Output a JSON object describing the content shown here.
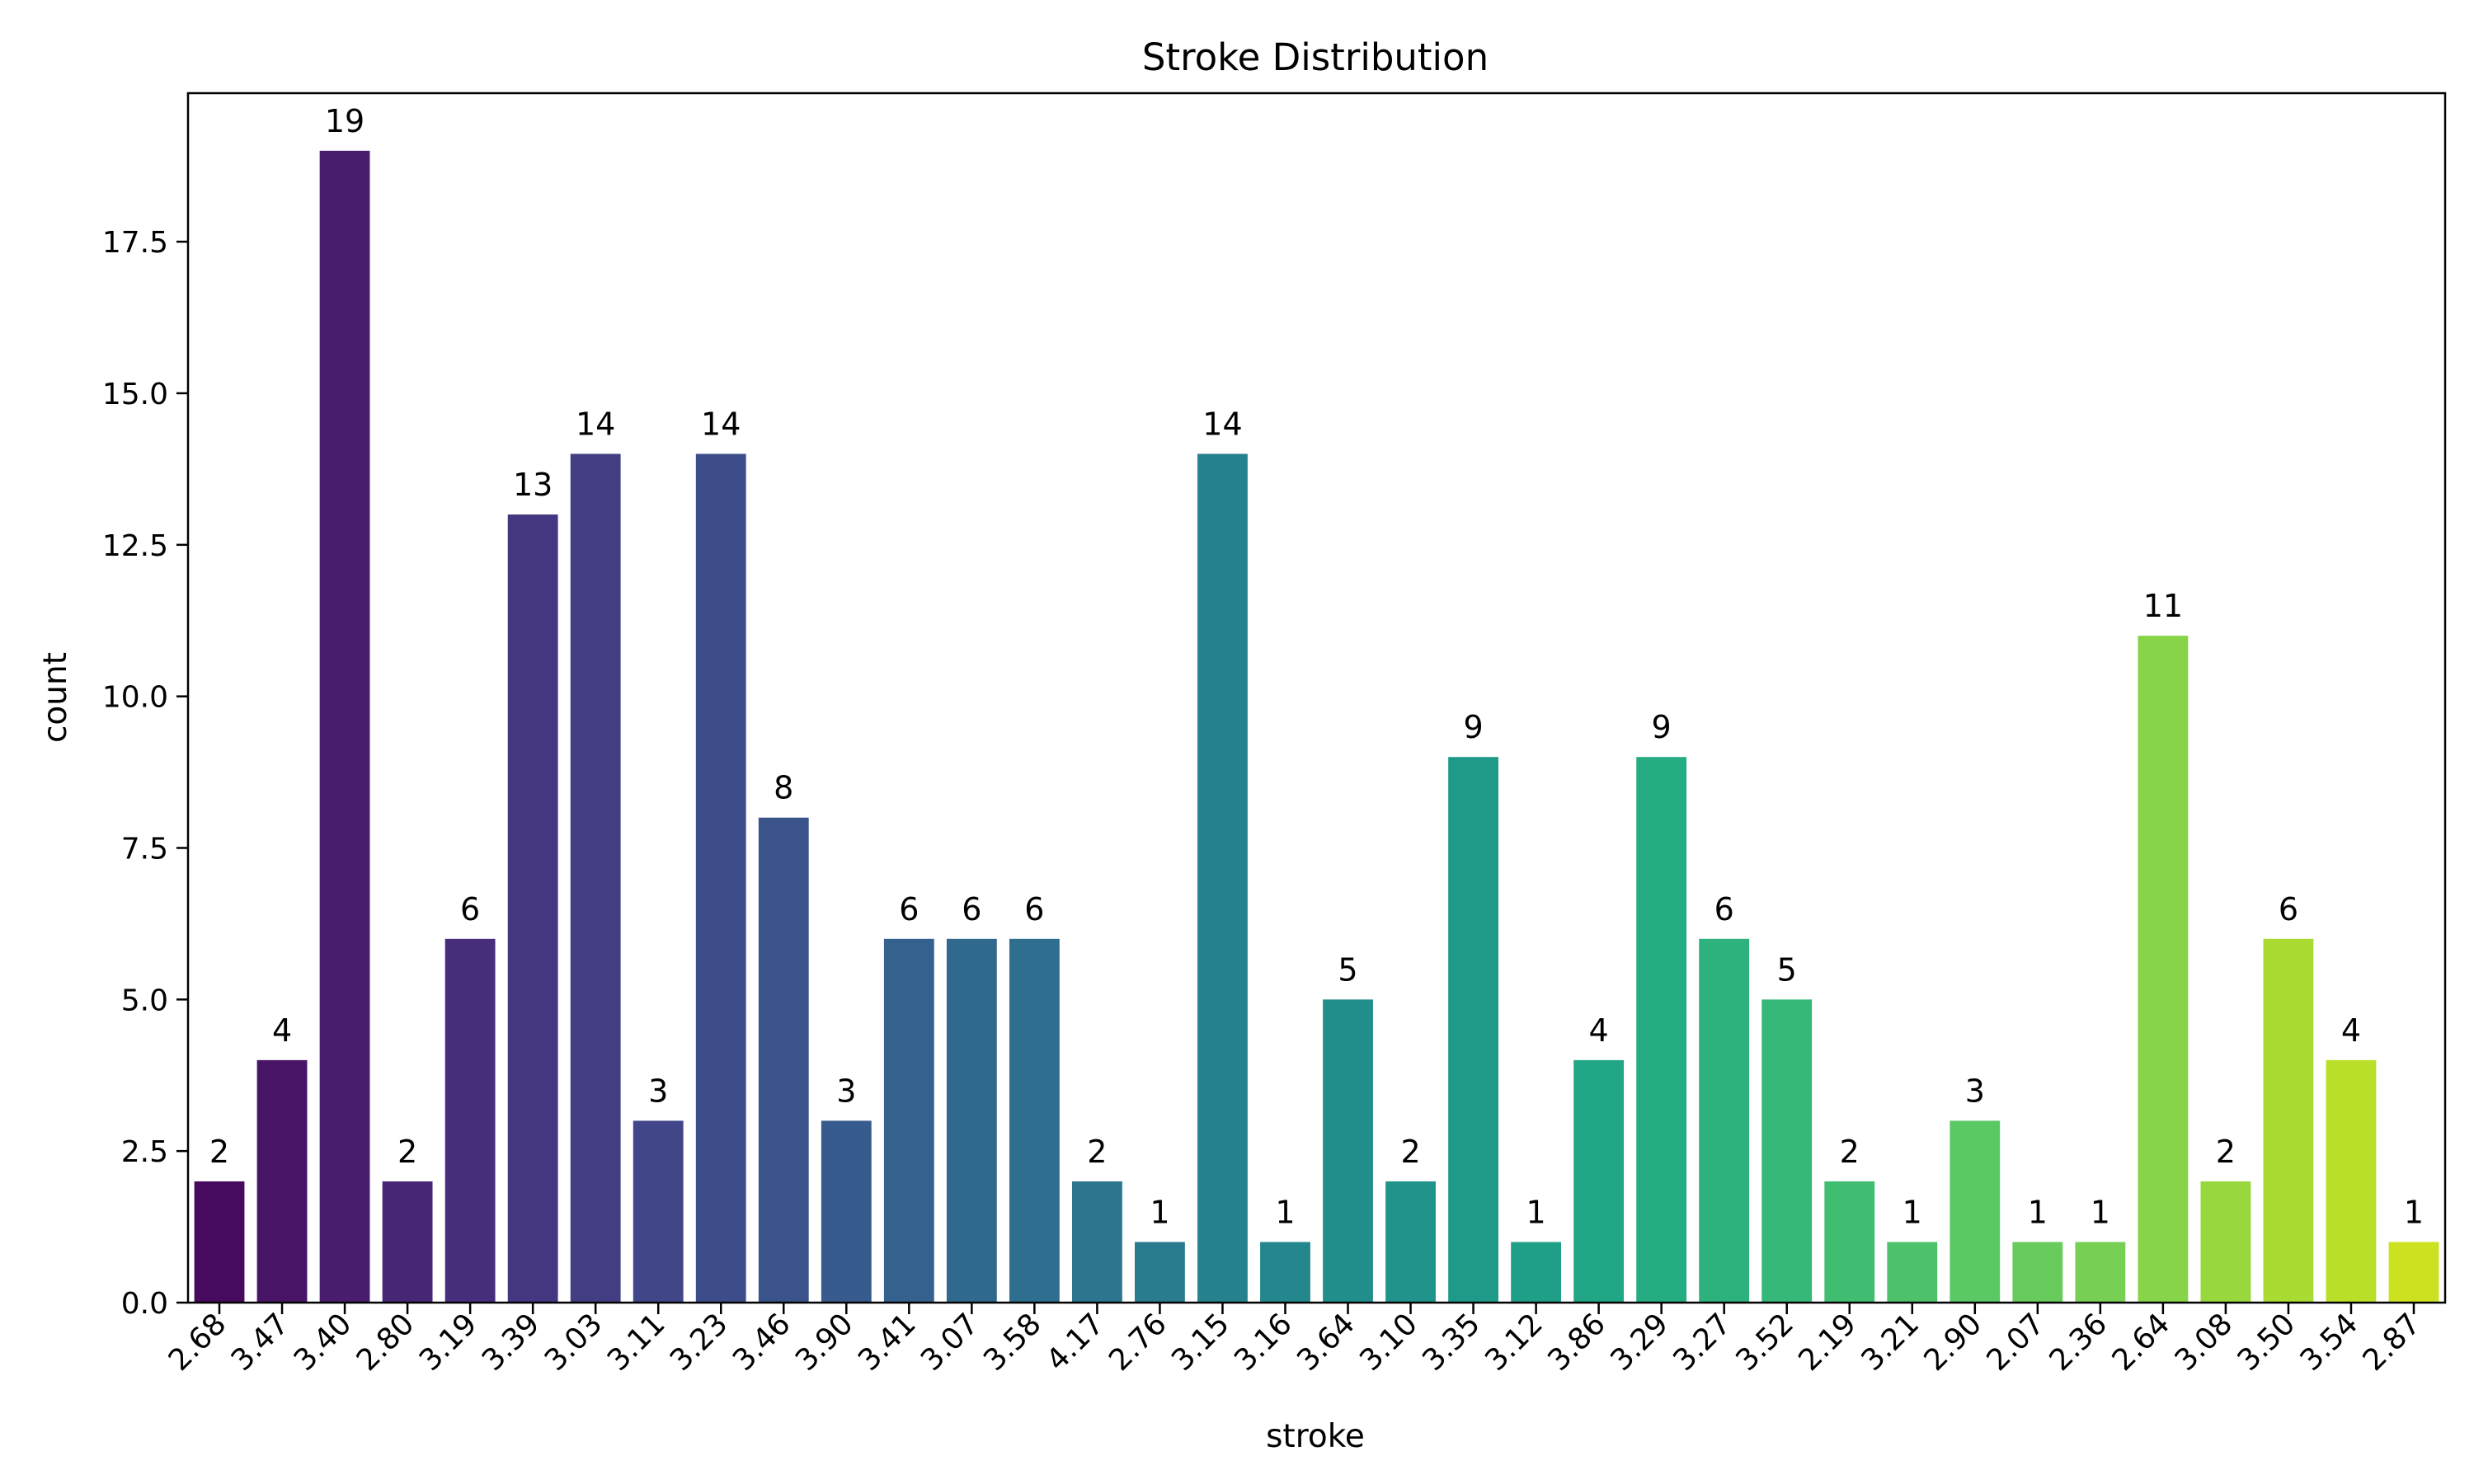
{
  "chart_data": {
    "type": "bar",
    "title": "Stroke Distribution",
    "xlabel": "stroke",
    "ylabel": "count",
    "ylim": [
      0,
      19.95
    ],
    "yticks": [
      "0.0",
      "2.5",
      "5.0",
      "7.5",
      "10.0",
      "12.5",
      "15.0",
      "17.5"
    ],
    "ytick_values": [
      0,
      2.5,
      5,
      7.5,
      10,
      12.5,
      15,
      17.5
    ],
    "categories": [
      "2.68",
      "3.47",
      "3.40",
      "2.80",
      "3.19",
      "3.39",
      "3.03",
      "3.11",
      "3.23",
      "3.46",
      "3.90",
      "3.41",
      "3.07",
      "3.58",
      "4.17",
      "2.76",
      "3.15",
      "3.16",
      "3.64",
      "3.10",
      "3.35",
      "3.12",
      "3.86",
      "3.29",
      "3.27",
      "3.52",
      "2.19",
      "3.21",
      "2.90",
      "2.07",
      "2.36",
      "2.64",
      "3.08",
      "3.50",
      "3.54",
      "2.87"
    ],
    "values": [
      2,
      4,
      19,
      2,
      6,
      13,
      14,
      3,
      14,
      8,
      3,
      6,
      6,
      6,
      2,
      1,
      14,
      1,
      5,
      2,
      9,
      1,
      4,
      9,
      6,
      5,
      2,
      1,
      3,
      1,
      1,
      11,
      2,
      6,
      4,
      1
    ],
    "data_labels": [
      "2",
      "4",
      "19",
      "2",
      "6",
      "13",
      "14",
      "3",
      "14",
      "8",
      "3",
      "6",
      "6",
      "6",
      "2",
      "1",
      "14",
      "1",
      "5",
      "2",
      "9",
      "1",
      "4",
      "9",
      "6",
      "5",
      "2",
      "1",
      "3",
      "1",
      "1",
      "11",
      "2",
      "6",
      "4",
      "1"
    ],
    "colors": [
      "#440154",
      "#471365",
      "#482475",
      "#463480",
      "#414487",
      "#3b528b",
      "#355f8d",
      "#2f6c8e",
      "#2a788e",
      "#25848e",
      "#21918c",
      "#1e9c89",
      "#22a884",
      "#2fb47c",
      "#44bf70",
      "#5ec962",
      "#7ad151",
      "#9bd93c",
      "#bddf26",
      "#dfe318"
    ],
    "palette": "viridis",
    "grid": false,
    "legend": "none"
  }
}
